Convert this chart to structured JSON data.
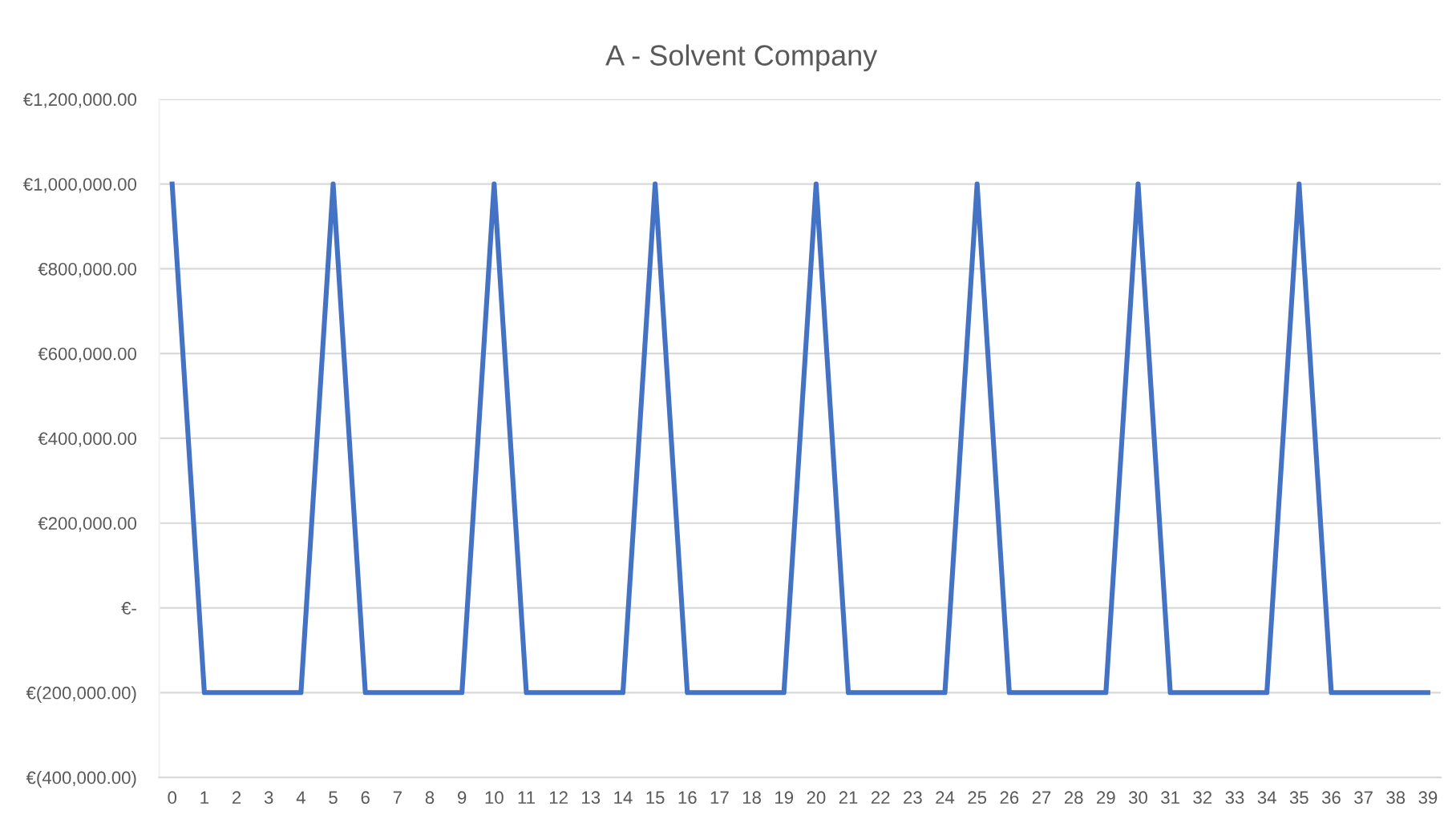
{
  "chart_data": {
    "type": "line",
    "title": "A - Solvent Company",
    "categories": [
      "0",
      "1",
      "2",
      "3",
      "4",
      "5",
      "6",
      "7",
      "8",
      "9",
      "10",
      "11",
      "12",
      "13",
      "14",
      "15",
      "16",
      "17",
      "18",
      "19",
      "20",
      "21",
      "22",
      "23",
      "24",
      "25",
      "26",
      "27",
      "28",
      "29",
      "30",
      "31",
      "32",
      "33",
      "34",
      "35",
      "36",
      "37",
      "38",
      "39"
    ],
    "series": [
      {
        "color": "#4472c4",
        "values": [
          1000000,
          -200000,
          -200000,
          -200000,
          -200000,
          1000000,
          -200000,
          -200000,
          -200000,
          -200000,
          1000000,
          -200000,
          -200000,
          -200000,
          -200000,
          1000000,
          -200000,
          -200000,
          -200000,
          -200000,
          1000000,
          -200000,
          -200000,
          -200000,
          -200000,
          1000000,
          -200000,
          -200000,
          -200000,
          -200000,
          1000000,
          -200000,
          -200000,
          -200000,
          -200000,
          1000000,
          -200000,
          -200000,
          -200000,
          -200000
        ]
      }
    ],
    "ylim": [
      -400000,
      1200000
    ],
    "yticks": [
      {
        "value": -400000,
        "label": "€(400,000.00)"
      },
      {
        "value": -200000,
        "label": "€(200,000.00)"
      },
      {
        "value": 0,
        "label": "€-"
      },
      {
        "value": 200000,
        "label": "€200,000.00"
      },
      {
        "value": 400000,
        "label": "€400,000.00"
      },
      {
        "value": 600000,
        "label": "€600,000.00"
      },
      {
        "value": 800000,
        "label": "€800,000.00"
      },
      {
        "value": 1000000,
        "label": "€1,000,000.00"
      },
      {
        "value": 1200000,
        "label": "€1,200,000.00"
      }
    ],
    "grid": "y",
    "legend": false,
    "marker": "none",
    "line_style": "solid"
  }
}
